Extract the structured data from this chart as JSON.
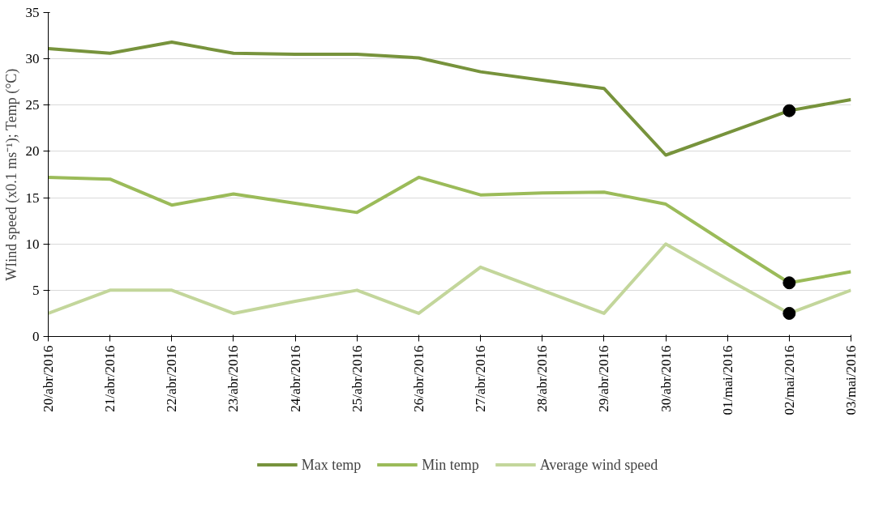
{
  "chart_data": {
    "type": "line",
    "ylabel": "WIind speed (x0.1 ms⁻¹); Temp (°C)",
    "categories": [
      "20/abr/2016",
      "21/abr/2016",
      "22/abr/2016",
      "23/abr/2016",
      "24/abr/2016",
      "25/abr/2016",
      "26/abr/2016",
      "27/abr/2016",
      "28/abr/2016",
      "29/abr/2016",
      "30/abr/2016",
      "01/mai/2016",
      "02/mai/2016",
      "03/mai/2016"
    ],
    "series": [
      {
        "name": "Max temp",
        "color": "#77933c",
        "values": [
          31.1,
          30.6,
          31.8,
          30.6,
          30.5,
          30.5,
          30.1,
          28.6,
          27.7,
          26.8,
          19.6,
          22.0,
          24.4,
          25.6
        ]
      },
      {
        "name": "Min temp",
        "color": "#9bbb59",
        "values": [
          17.2,
          17.0,
          14.2,
          15.4,
          14.4,
          13.4,
          17.2,
          15.3,
          15.5,
          15.6,
          14.3,
          10.0,
          5.8,
          7.0
        ]
      },
      {
        "name": "Average wind speed",
        "color": "#c3d69b",
        "values": [
          2.5,
          5,
          5,
          2.5,
          3.8,
          5,
          2.5,
          7.5,
          5,
          2.5,
          10,
          6.2,
          2.5,
          5
        ]
      },
      {
        "type": "scatter",
        "color": "#000000",
        "marker": "circle",
        "x": [
          "02/mai/2016",
          "02/mai/2016",
          "02/mai/2016"
        ],
        "values": [
          24.4,
          5.8,
          2.5
        ]
      }
    ],
    "ylim": [
      0,
      35
    ],
    "yticks": [
      0,
      5,
      10,
      15,
      20,
      25,
      30,
      35
    ],
    "grid": "y",
    "legend": "bottom",
    "marker": "none",
    "line_style": "solid"
  }
}
